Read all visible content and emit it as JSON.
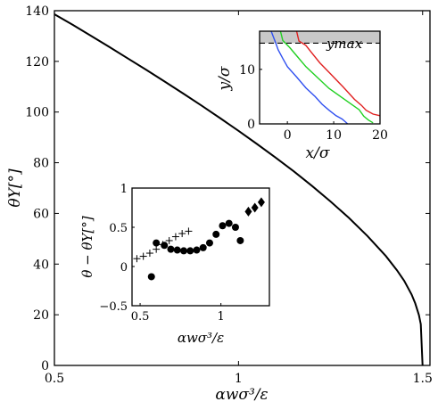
{
  "chart_data": [
    {
      "type": "line",
      "xlabel": "αwσ³/ε",
      "ylabel": "θY[°]",
      "xlim": [
        0.5,
        1.52
      ],
      "ylim": [
        0,
        140
      ],
      "xticks": [
        0.5,
        1,
        1.5
      ],
      "yticks": [
        0,
        20,
        40,
        60,
        80,
        100,
        120,
        140
      ],
      "line_color": "#000000",
      "series": [
        {
          "x": [
            0.5,
            0.55,
            0.6,
            0.65,
            0.7,
            0.75,
            0.8,
            0.85,
            0.9,
            0.95,
            1.0,
            1.05,
            1.1,
            1.15,
            1.2,
            1.25,
            1.3,
            1.35,
            1.4,
            1.43,
            1.45,
            1.47,
            1.48,
            1.49,
            1.495,
            1.5
          ],
          "y": [
            138.6,
            134.4,
            130.0,
            125.6,
            121.1,
            116.6,
            112.0,
            107.3,
            102.5,
            97.6,
            92.6,
            87.4,
            82.1,
            76.6,
            70.8,
            64.7,
            58.2,
            51.1,
            43.2,
            37.6,
            33.4,
            28.0,
            24.5,
            19.9,
            16.3,
            0
          ]
        }
      ]
    },
    {
      "type": "line",
      "xlabel": "x/σ",
      "ylabel": "y/σ",
      "xlim": [
        -6,
        20
      ],
      "ylim": [
        0,
        17
      ],
      "xticks": [
        0,
        10,
        20
      ],
      "yticks": [
        0,
        10
      ],
      "annotation": "ymax",
      "ymax": 14.8,
      "shade_color": "#c8c8c8",
      "series": [
        {
          "color": "#3050f0",
          "x": [
            -3.5,
            -2.5,
            -2,
            -1,
            0,
            2,
            4,
            6,
            7.5,
            9,
            10.5,
            11.8,
            12.5,
            13
          ],
          "y": [
            17,
            14.8,
            13.6,
            12,
            10.5,
            8.6,
            6.6,
            5,
            3.6,
            2.5,
            1.5,
            0.9,
            0.4,
            0
          ]
        },
        {
          "color": "#20d020",
          "x": [
            -1.5,
            -1,
            0.5,
            2,
            4,
            6.5,
            9,
            11.5,
            13.5,
            15.5,
            16.5,
            17.5,
            18.5
          ],
          "y": [
            17,
            15.3,
            14,
            12.5,
            10.5,
            8.5,
            6.5,
            5,
            3.8,
            2.6,
            1.4,
            0.7,
            0.2
          ]
        },
        {
          "color": "#e02020",
          "x": [
            2,
            2.5,
            4,
            5,
            7,
            9.5,
            12,
            14.5,
            16,
            17,
            18.5,
            20
          ],
          "y": [
            17,
            15.2,
            14.4,
            13.3,
            11.2,
            9,
            6.8,
            4.5,
            3.4,
            2.5,
            1.8,
            1.5
          ]
        }
      ]
    },
    {
      "type": "scatter",
      "xlabel": "αwσ³/ε",
      "ylabel": "θ − θY[°]",
      "xlim": [
        0.45,
        1.3
      ],
      "ylim": [
        -0.5,
        1
      ],
      "xticks": [
        0.5,
        1
      ],
      "xtick_labels": [
        "0.5",
        "1"
      ],
      "yticks": [
        -0.5,
        0,
        0.5,
        1
      ],
      "ytick_labels": [
        "−0.5",
        "0",
        "0.5",
        "1"
      ],
      "series": [
        {
          "marker": "plus",
          "x": [
            0.48,
            0.52,
            0.56,
            0.6,
            0.64,
            0.68,
            0.72,
            0.76,
            0.8
          ],
          "y": [
            0.1,
            0.13,
            0.17,
            0.22,
            0.28,
            0.33,
            0.38,
            0.42,
            0.45
          ]
        },
        {
          "marker": "circle",
          "x": [
            0.57,
            0.6,
            0.65,
            0.69,
            0.73,
            0.77,
            0.81,
            0.85,
            0.89,
            0.93,
            0.97,
            1.01,
            1.05,
            1.09,
            1.12
          ],
          "y": [
            -0.13,
            0.3,
            0.27,
            0.22,
            0.21,
            0.2,
            0.2,
            0.21,
            0.24,
            0.3,
            0.41,
            0.52,
            0.55,
            0.5,
            0.33
          ]
        },
        {
          "marker": "diamond",
          "x": [
            1.17,
            1.21,
            1.25
          ],
          "y": [
            0.7,
            0.75,
            0.82
          ]
        }
      ]
    }
  ]
}
